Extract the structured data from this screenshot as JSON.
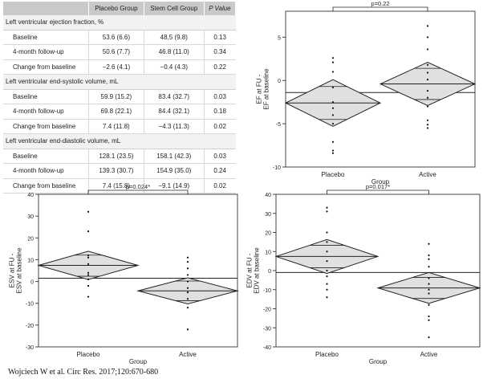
{
  "table": {
    "headers": [
      "",
      "Placebo Group",
      "Stem Cell Group",
      "P Value"
    ],
    "sections": [
      {
        "title": "Left ventricular ejection fraction, %",
        "rows": [
          [
            "Baseline",
            "53.6 (6.6)",
            "48.5 (9.8)",
            "0.13"
          ],
          [
            "4-month follow-up",
            "50.6 (7.7)",
            "46.8 (11.0)",
            "0.34"
          ],
          [
            "Change from baseline",
            "−2.6 (4.1)",
            "−0.4 (4.3)",
            "0.22"
          ]
        ]
      },
      {
        "title": "Left ventricular end-systolic volume, mL",
        "rows": [
          [
            "Baseline",
            "59.9 (15.2)",
            "83.4 (32.7)",
            "0.03"
          ],
          [
            "4-month follow-up",
            "69.8 (22.1)",
            "84.4 (32.1)",
            "0.18"
          ],
          [
            "Change from baseline",
            "7.4 (11.8)",
            "−4.3 (11.3)",
            "0.02"
          ]
        ]
      },
      {
        "title": "Left ventricular end-diastolic volume, mL",
        "rows": [
          [
            "Baseline",
            "128.1 (23.5)",
            "158.1 (42.3)",
            "0.03"
          ],
          [
            "4-month follow-up",
            "139.3 (30.7)",
            "154.9 (35.0)",
            "0.24"
          ],
          [
            "Change from baseline",
            "7.4 (15.8)",
            "−9.1 (14.9)",
            "0.02"
          ]
        ]
      }
    ]
  },
  "citation": "Wojciech W et al. Circ Res. 2017;120:670-680",
  "chart_data": [
    {
      "id": "ef",
      "type": "scatter",
      "title": "",
      "xlabel": "Group",
      "ylabel": "EF at FU -\nEF at baseline",
      "categories": [
        "Placebo",
        "Active"
      ],
      "ylim": [
        -10,
        8
      ],
      "yticks": [
        -10,
        -5,
        0,
        5
      ],
      "ref_line": -1.4,
      "p_label": "p=0.22",
      "groups": [
        {
          "name": "Placebo",
          "mean": -2.6,
          "ci": [
            -5.3,
            0.1
          ],
          "inner": [
            -4.5,
            -0.7
          ],
          "points": [
            2.6,
            2.1,
            1.0,
            -0.8,
            -2.5,
            -3.2,
            -4.0,
            -5.0,
            -7.1,
            -8.1,
            -8.4
          ]
        },
        {
          "name": "Active",
          "mean": -0.4,
          "ci": [
            -2.9,
            2.1
          ],
          "inner": [
            -2.2,
            1.4
          ],
          "points": [
            6.3,
            5.0,
            3.6,
            1.8,
            0.9,
            0.1,
            -1.2,
            -2.0,
            -3.0,
            -4.6,
            -5.1,
            -5.5
          ]
        }
      ]
    },
    {
      "id": "esv",
      "type": "scatter",
      "title": "",
      "xlabel": "Group",
      "ylabel": "ESV at FU -\nESV at baseline",
      "categories": [
        "Placebo",
        "Active"
      ],
      "ylim": [
        -30,
        40
      ],
      "yticks": [
        -30,
        -20,
        -10,
        0,
        10,
        20,
        30,
        40
      ],
      "ref_line": 1.5,
      "p_label": "p=0.024*",
      "groups": [
        {
          "name": "Placebo",
          "mean": 7.4,
          "ci": [
            0.9,
            13.9
          ],
          "inner": [
            2.4,
            12.1
          ],
          "points": [
            32,
            23,
            12,
            11,
            8,
            4,
            3,
            1,
            -2,
            -7
          ]
        },
        {
          "name": "Active",
          "mean": -4.3,
          "ci": [
            -10.3,
            1.7
          ],
          "inner": [
            -8.8,
            0.2
          ],
          "points": [
            11,
            9,
            6,
            3,
            0,
            -3,
            -5,
            -8,
            -12,
            -22
          ]
        }
      ]
    },
    {
      "id": "edv",
      "type": "scatter",
      "title": "",
      "xlabel": "Group",
      "ylabel": "EDV at FU -\nEDV at baseline",
      "categories": [
        "Placebo",
        "Active"
      ],
      "ylim": [
        -40,
        40
      ],
      "yticks": [
        -40,
        -30,
        -20,
        -10,
        0,
        10,
        20,
        30,
        40
      ],
      "ref_line": -1.0,
      "p_label": "p=0.017*",
      "groups": [
        {
          "name": "Placebo",
          "mean": 7.4,
          "ci": [
            -1.5,
            16.3
          ],
          "inner": [
            1.5,
            13.3
          ],
          "points": [
            33,
            31,
            20,
            15,
            10,
            5,
            0,
            -3,
            -7,
            -10,
            -14
          ]
        },
        {
          "name": "Active",
          "mean": -9.1,
          "ci": [
            -17.2,
            -1.0
          ],
          "inner": [
            -14.6,
            -3.6
          ],
          "points": [
            14,
            8,
            6,
            2,
            -4,
            -7,
            -10,
            -12,
            -18,
            -24,
            -26,
            -35
          ]
        }
      ]
    }
  ]
}
